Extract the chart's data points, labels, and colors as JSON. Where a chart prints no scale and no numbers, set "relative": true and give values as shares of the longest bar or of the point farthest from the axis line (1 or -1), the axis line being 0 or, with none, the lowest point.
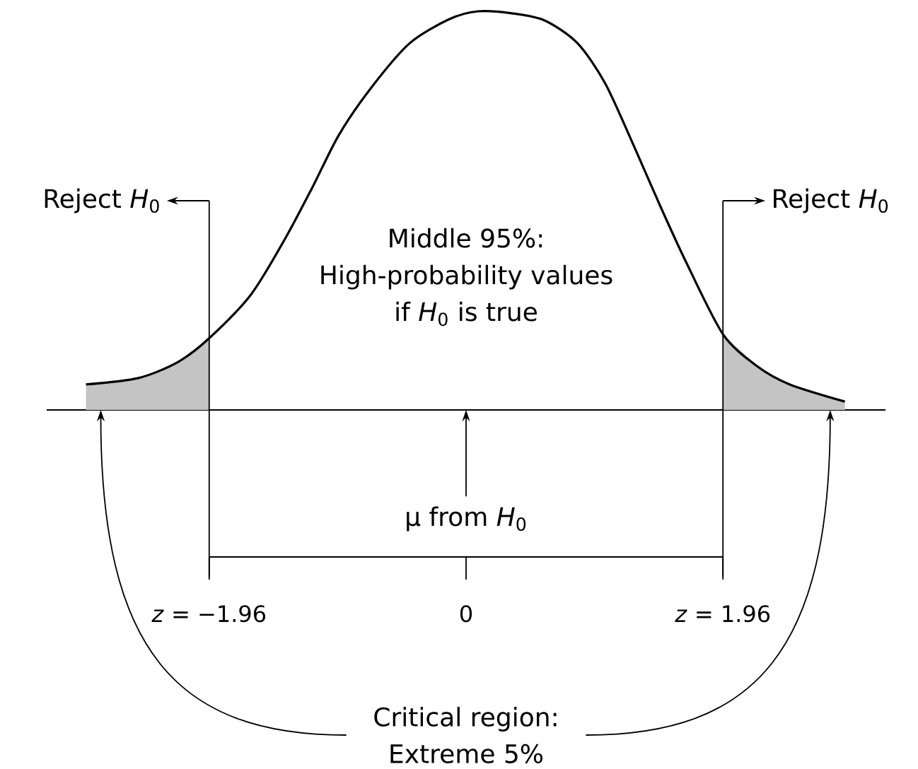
{
  "chart_data": {
    "type": "line",
    "relative": true,
    "series": [
      {
        "color": "#000000",
        "x": [
          -2.9,
          -2.5,
          -2.2,
          -1.96,
          -1.64,
          -1.38,
          -1.17,
          -0.97,
          -0.72,
          -0.43,
          -0.13,
          0.09,
          0.35,
          0.6,
          0.85,
          1.06,
          1.27,
          1.47,
          1.68,
          1.96,
          2.22,
          2.47,
          2.89
        ],
        "values": [
          0.064,
          0.08,
          0.12,
          0.18,
          0.29,
          0.43,
          0.56,
          0.69,
          0.81,
          0.92,
          0.98,
          1,
          0.995,
          0.977,
          0.92,
          0.82,
          0.67,
          0.52,
          0.37,
          0.19,
          0.11,
          0.064,
          0.021
        ]
      },
      {
        "type": "area",
        "color": "#c4c4c4",
        "x": [
          -2.9,
          -2.5,
          -2.2,
          -1.96
        ],
        "values": [
          0.064,
          0.08,
          0.12,
          0.18
        ]
      },
      {
        "type": "area",
        "color": "#c4c4c4",
        "x": [
          1.96,
          2.22,
          2.47,
          2.89
        ],
        "values": [
          0.19,
          0.11,
          0.064,
          0.021
        ]
      }
    ],
    "xlim": [
      -3.2,
      3.2
    ],
    "xticks": [
      {
        "value": -1.96,
        "label": "*z* = −1.96"
      },
      0,
      {
        "value": 1.96,
        "label": "*z* = 1.96"
      }
    ],
    "ref_lines": [
      {
        "axis": "x",
        "value": -1.96,
        "label": "Reject *H*$_{0}$"
      },
      {
        "axis": "x",
        "value": 1.96,
        "label": "Reject *H*$_{0}$"
      }
    ],
    "annotations": [
      "Middle 95%: High-probability values if *H*$_{0}$ is true",
      "μ from *H*$_{0}$",
      "Critical region: Extreme 5%"
    ]
  }
}
